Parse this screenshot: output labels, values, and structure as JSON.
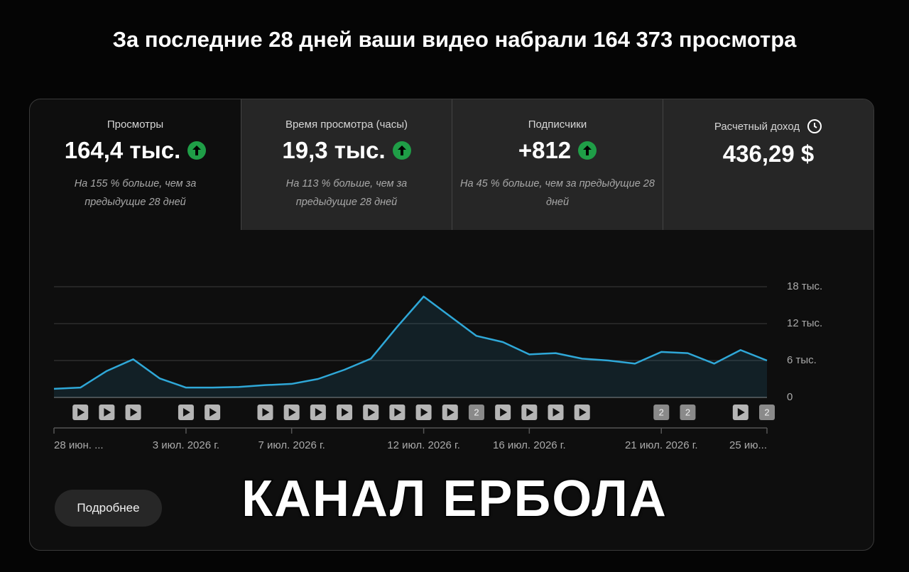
{
  "header": {
    "title": "За последние 28 дней ваши видео набрали 164 373 просмотра"
  },
  "cards": [
    {
      "label": "Просмотры",
      "value": "164,4 тыс.",
      "note": "На 155 % больше, чем за предыдущие 28 дней"
    },
    {
      "label": "Время просмотра (часы)",
      "value": "19,3 тыс.",
      "note": "На 113 % больше, чем за предыдущие 28 дней"
    },
    {
      "label": "Подписчики",
      "value": "+812",
      "note": "На 45 % больше, чем за предыдущие 28 дней"
    },
    {
      "label": "Расчетный доход",
      "value": "436,29 $"
    }
  ],
  "chart_data": {
    "type": "area",
    "categories": [
      "28 июн. ...",
      null,
      null,
      null,
      null,
      "3 июл. 2026 г.",
      null,
      null,
      null,
      "7 июл. 2026 г.",
      null,
      null,
      null,
      null,
      "12 июл. 2026 г.",
      null,
      null,
      null,
      "16 июл. 2026 г.",
      null,
      null,
      null,
      null,
      "21 июл. 2026 г.",
      null,
      null,
      null,
      "25 ию..."
    ],
    "values": [
      1400,
      1600,
      4300,
      6200,
      3100,
      1600,
      1600,
      1700,
      2000,
      2200,
      3000,
      4500,
      6300,
      11500,
      16400,
      13200,
      10000,
      9000,
      7000,
      7200,
      6300,
      6000,
      5500,
      7400,
      7200,
      5500,
      7700,
      6000
    ],
    "uploads": [
      null,
      1,
      1,
      1,
      null,
      1,
      1,
      null,
      1,
      1,
      1,
      1,
      1,
      1,
      1,
      1,
      2,
      1,
      1,
      1,
      1,
      null,
      null,
      2,
      2,
      null,
      1,
      2
    ],
    "color": "#2fa8d8",
    "ylim": [
      0,
      18000
    ],
    "yticks": [
      0,
      {
        "value": 6000,
        "label": "6 тыс."
      },
      {
        "value": 12000,
        "label": "12 тыс."
      },
      {
        "value": 18000,
        "label": "18 тыс."
      }
    ],
    "grid": true
  },
  "button": {
    "label": "Подробнее"
  },
  "overlay": {
    "text": "КАНАЛ ЕРБОЛА"
  }
}
